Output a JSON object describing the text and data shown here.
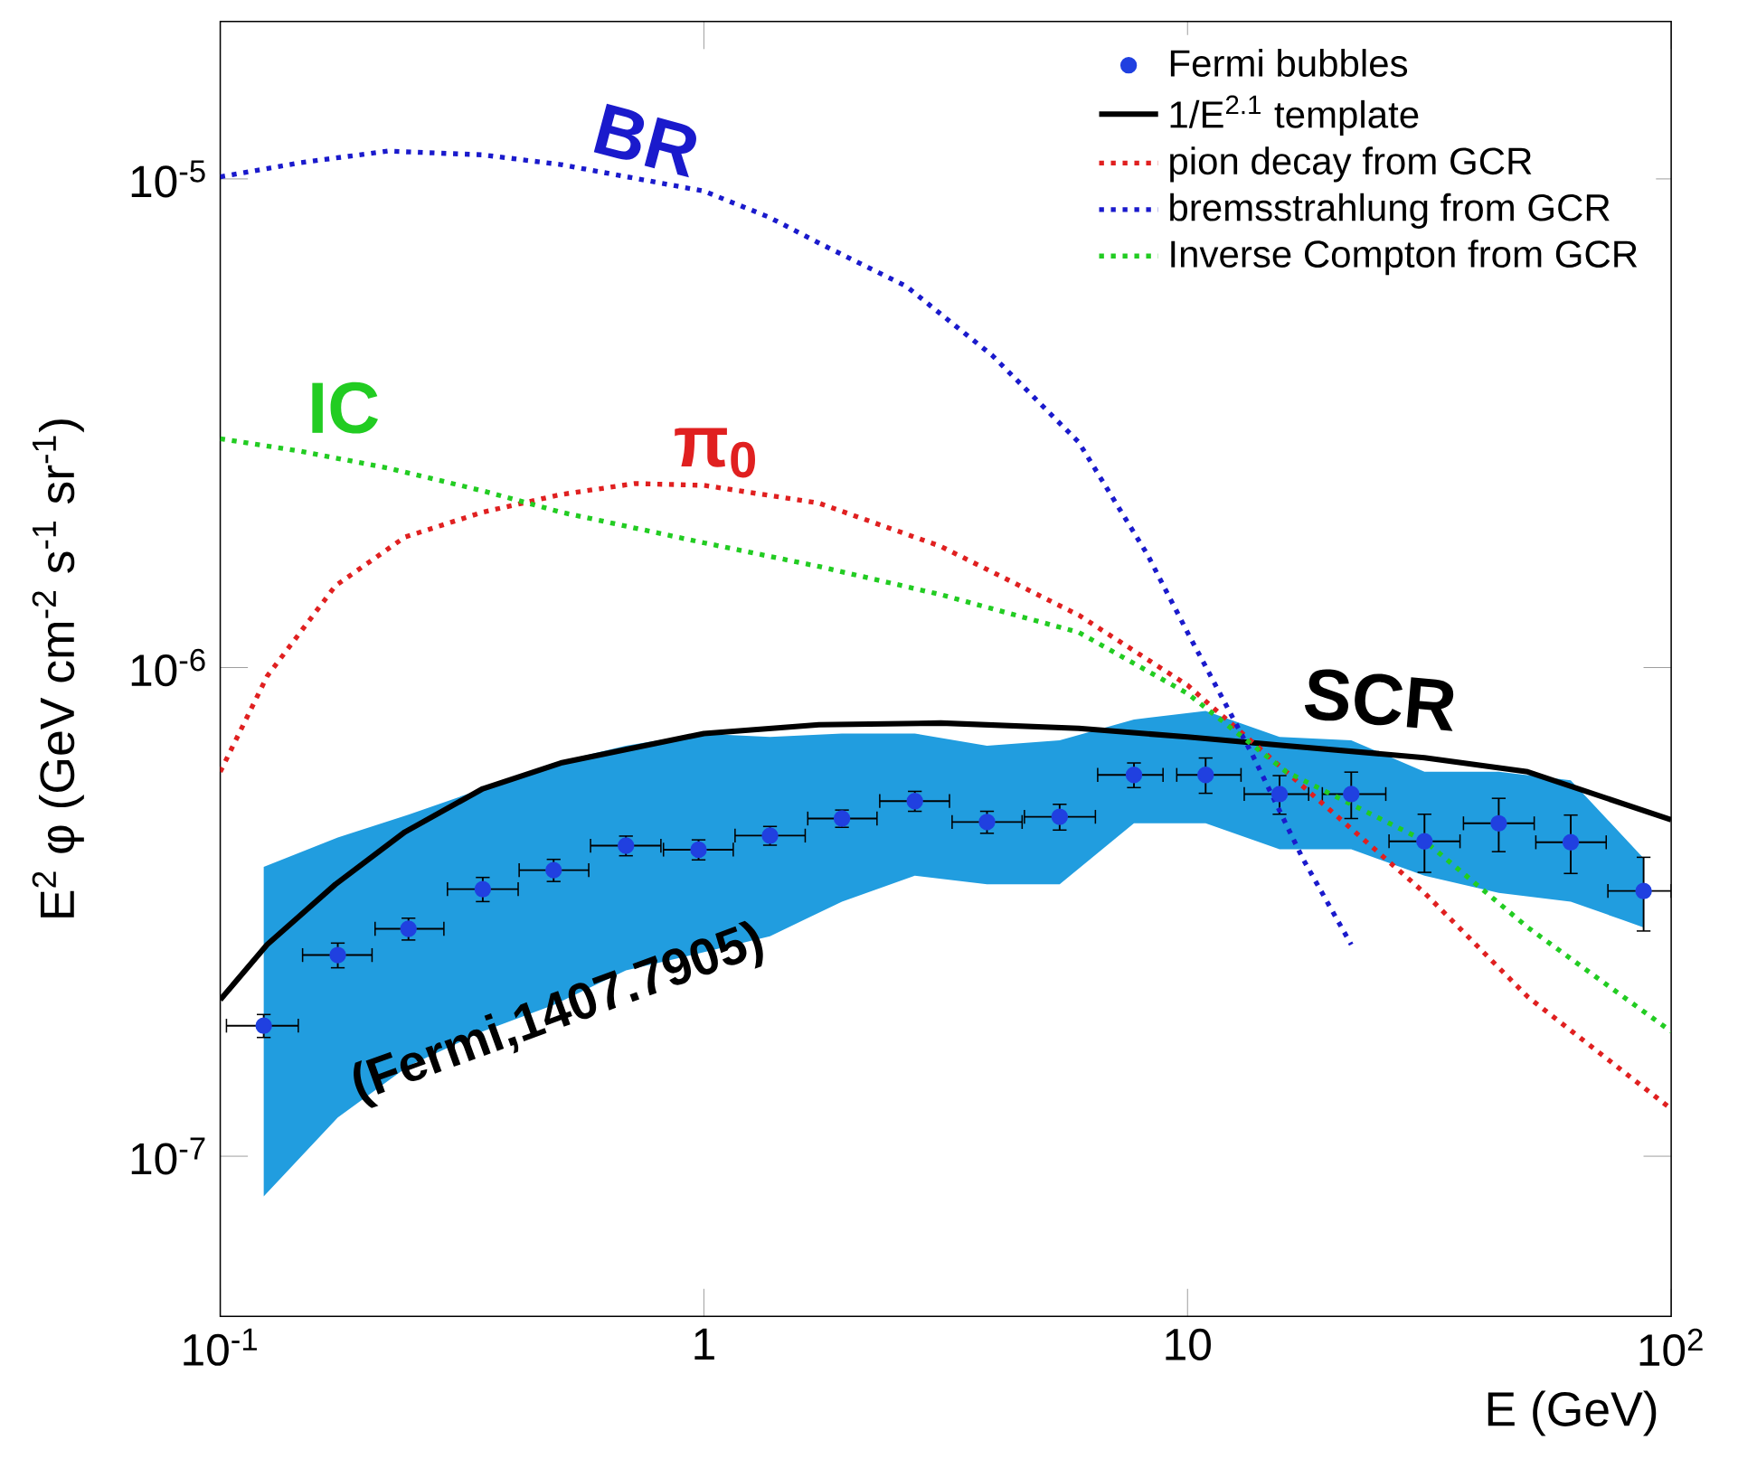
{
  "chart_data": {
    "type": "line",
    "xlabel": "E (GeV)",
    "ylabel": "E$^{2}$ φ (GeV cm$^{-2}$ s$^{-1}$ sr$^{-1}$)",
    "log": "xy",
    "xlim": [
      0.1,
      100
    ],
    "ylim": [
      4.7e-08,
      2.1e-05
    ],
    "xticks": [
      {
        "value": 0.1,
        "label": "10$^{-1}$"
      },
      1,
      10,
      {
        "value": 100,
        "label": "10$^{2}$"
      }
    ],
    "yticks": [
      {
        "value": 1e-07,
        "label": "10$^{-7}$"
      },
      {
        "value": 1e-06,
        "label": "10$^{-6}$"
      },
      {
        "value": 1e-05,
        "label": "10$^{-5}$"
      }
    ],
    "legend": "top right",
    "series": [
      {
        "name": "Fermi bubbles",
        "type": "scatter",
        "marker": "circle",
        "color": "#2040e0",
        "x": [
          0.123,
          0.175,
          0.245,
          0.349,
          0.489,
          0.69,
          0.975,
          1.37,
          1.93,
          2.73,
          3.85,
          5.44,
          7.75,
          10.9,
          15.5,
          21.8,
          30.9,
          44,
          62,
          87.7
        ],
        "values": [
          1.85e-07,
          2.58e-07,
          2.92e-07,
          3.52e-07,
          3.85e-07,
          4.32e-07,
          4.24e-07,
          4.53e-07,
          4.91e-07,
          5.33e-07,
          4.83e-07,
          4.95e-07,
          6.03e-07,
          6.03e-07,
          5.51e-07,
          5.51e-07,
          4.41e-07,
          4.8e-07,
          4.39e-07,
          3.49e-07
        ],
        "errors": [
          1e-08,
          1.5e-08,
          1.5e-08,
          2e-08,
          2e-08,
          2e-08,
          2e-08,
          2e-08,
          2e-08,
          2.5e-08,
          2.5e-08,
          3e-08,
          3.5e-08,
          5e-08,
          5e-08,
          6e-08,
          6e-08,
          6e-08,
          6e-08,
          6e-08
        ],
        "lower": [
          8.28e-08,
          1.2e-07,
          1.53e-07,
          1.8e-07,
          2.04e-07,
          2.4e-07,
          2.6e-07,
          2.82e-07,
          3.32e-07,
          3.75e-07,
          3.6e-07,
          3.6e-07,
          4.8e-07,
          4.8e-07,
          4.25e-07,
          4.25e-07,
          3.75e-07,
          3.46e-07,
          3.32e-07,
          2.94e-07
        ],
        "upper": [
          3.91e-07,
          4.49e-07,
          5e-07,
          5.65e-07,
          6.38e-07,
          6.92e-07,
          7.33e-07,
          7.21e-07,
          7.33e-07,
          7.33e-07,
          6.92e-07,
          7.1e-07,
          7.83e-07,
          8.15e-07,
          7.21e-07,
          7.1e-07,
          6.12e-07,
          6.12e-07,
          5.88e-07,
          4.07e-07
        ],
        "xerrors": [
          [
            0.103,
            0.145
          ],
          [
            0.148,
            0.206
          ],
          [
            0.209,
            0.29
          ],
          [
            0.295,
            0.413
          ],
          [
            0.415,
            0.578
          ],
          [
            0.583,
            0.815
          ],
          [
            0.825,
            1.15
          ],
          [
            1.16,
            1.62
          ],
          [
            1.64,
            2.28
          ],
          [
            2.31,
            3.22
          ],
          [
            3.26,
            4.55
          ],
          [
            4.6,
            6.45
          ],
          [
            6.52,
            8.9
          ],
          [
            9.5,
            12.9
          ],
          [
            13.1,
            17.8
          ],
          [
            19,
            25.7
          ],
          [
            26.1,
            36.6
          ],
          [
            37.2,
            52.1
          ],
          [
            52.5,
            73.4
          ],
          [
            74,
            100
          ]
        ]
      },
      {
        "name": "1/E$^{2.1}$ template",
        "color": "#000000",
        "line_style": "solid",
        "x": [
          0.1,
          0.125,
          0.173,
          0.241,
          0.349,
          0.506,
          1,
          1.73,
          3.09,
          5.96,
          10,
          16,
          30.9,
          50.5,
          100
        ],
        "values": [
          2.09e-07,
          2.71e-07,
          3.6e-07,
          4.61e-07,
          5.65e-07,
          6.38e-07,
          7.33e-07,
          7.64e-07,
          7.7e-07,
          7.51e-07,
          7.21e-07,
          6.92e-07,
          6.54e-07,
          6.12e-07,
          4.88e-07
        ]
      },
      {
        "name": "pion decay from GCR",
        "color": "#e02020",
        "line_style": "dotted",
        "x": [
          0.1,
          0.125,
          0.173,
          0.241,
          0.349,
          0.506,
          0.72,
          1,
          1.73,
          3.09,
          5.96,
          10,
          16,
          30.9,
          50.5,
          100
        ],
        "values": [
          6.12e-07,
          9.6e-07,
          1.47e-06,
          1.85e-06,
          2.08e-06,
          2.26e-06,
          2.38e-06,
          2.36e-06,
          2.17e-06,
          1.77e-06,
          1.28e-06,
          9.2e-07,
          6.12e-07,
          3.46e-07,
          2.12e-07,
          1.25e-07
        ]
      },
      {
        "name": "bremsstrahlung from GCR",
        "color": "#1a1acc",
        "line_style": "dotted",
        "x": [
          0.1,
          0.147,
          0.222,
          0.349,
          0.506,
          1,
          1.36,
          1.73,
          2.62,
          3.95,
          5.96,
          8.27,
          10,
          13.6,
          17.3,
          21.8
        ],
        "values": [
          1.01e-05,
          1.08e-05,
          1.14e-05,
          1.12e-05,
          1.07e-05,
          9.44e-06,
          8.36e-06,
          7.39e-06,
          6.03e-06,
          4.35e-06,
          2.89e-06,
          1.7e-06,
          1.18e-06,
          6.65e-07,
          4.07e-07,
          2.71e-07
        ]
      },
      {
        "name": "Inverse Compton from GCR",
        "color": "#22cc22",
        "line_style": "dotted",
        "x": [
          0.1,
          0.147,
          0.222,
          0.349,
          0.506,
          1,
          1.73,
          3.09,
          5.96,
          10,
          16,
          30.9,
          50.5,
          100
        ],
        "values": [
          2.94e-06,
          2.77e-06,
          2.56e-06,
          2.3e-06,
          2.08e-06,
          1.8e-06,
          1.61e-06,
          1.41e-06,
          1.18e-06,
          8.85e-07,
          6.12e-07,
          4.42e-07,
          2.94e-07,
          1.8e-07
        ]
      }
    ],
    "annotations": [
      "(Fermi,1407.7905)",
      "SCR",
      "π$_{0}$",
      "BR",
      "IC"
    ]
  }
}
